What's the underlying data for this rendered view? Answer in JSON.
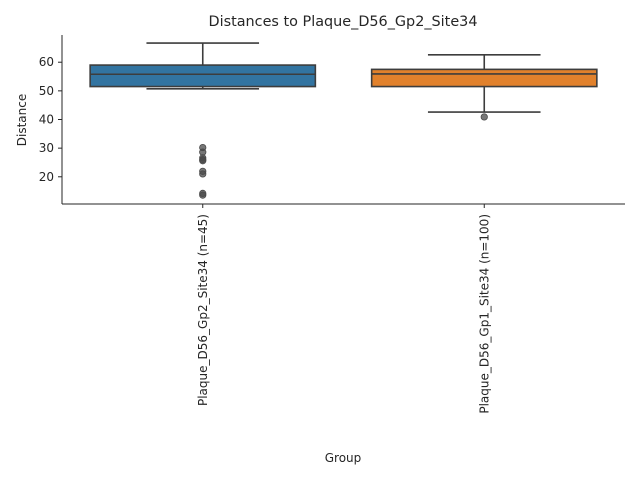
{
  "chart_data": {
    "type": "box",
    "title": "Distances to Plaque_D56_Gp2_Site34",
    "xlabel": "Group",
    "ylabel": "Distance",
    "ylim": [
      10.5,
      69.5
    ],
    "yticks": [
      20,
      30,
      40,
      50,
      60
    ],
    "grid": false,
    "legend": "none",
    "categories": [
      "Plaque_D56_Gp2_Site34 (n=45)",
      "Plaque_D56_Gp1_Site34 (n=100)"
    ],
    "series": [
      {
        "color": "#3274a1",
        "whislo": 50.7,
        "q1": 51.5,
        "med": 55.8,
        "q3": 59.0,
        "whishi": 66.7,
        "fliers": [
          30.2,
          28.6,
          26.6,
          26.0,
          25.6,
          21.9,
          21.0,
          14.2,
          13.6
        ]
      },
      {
        "color": "#e1812c",
        "whislo": 42.6,
        "q1": 51.5,
        "med": 55.9,
        "q3": 57.5,
        "whishi": 62.6,
        "fliers": [
          40.9
        ]
      }
    ]
  }
}
